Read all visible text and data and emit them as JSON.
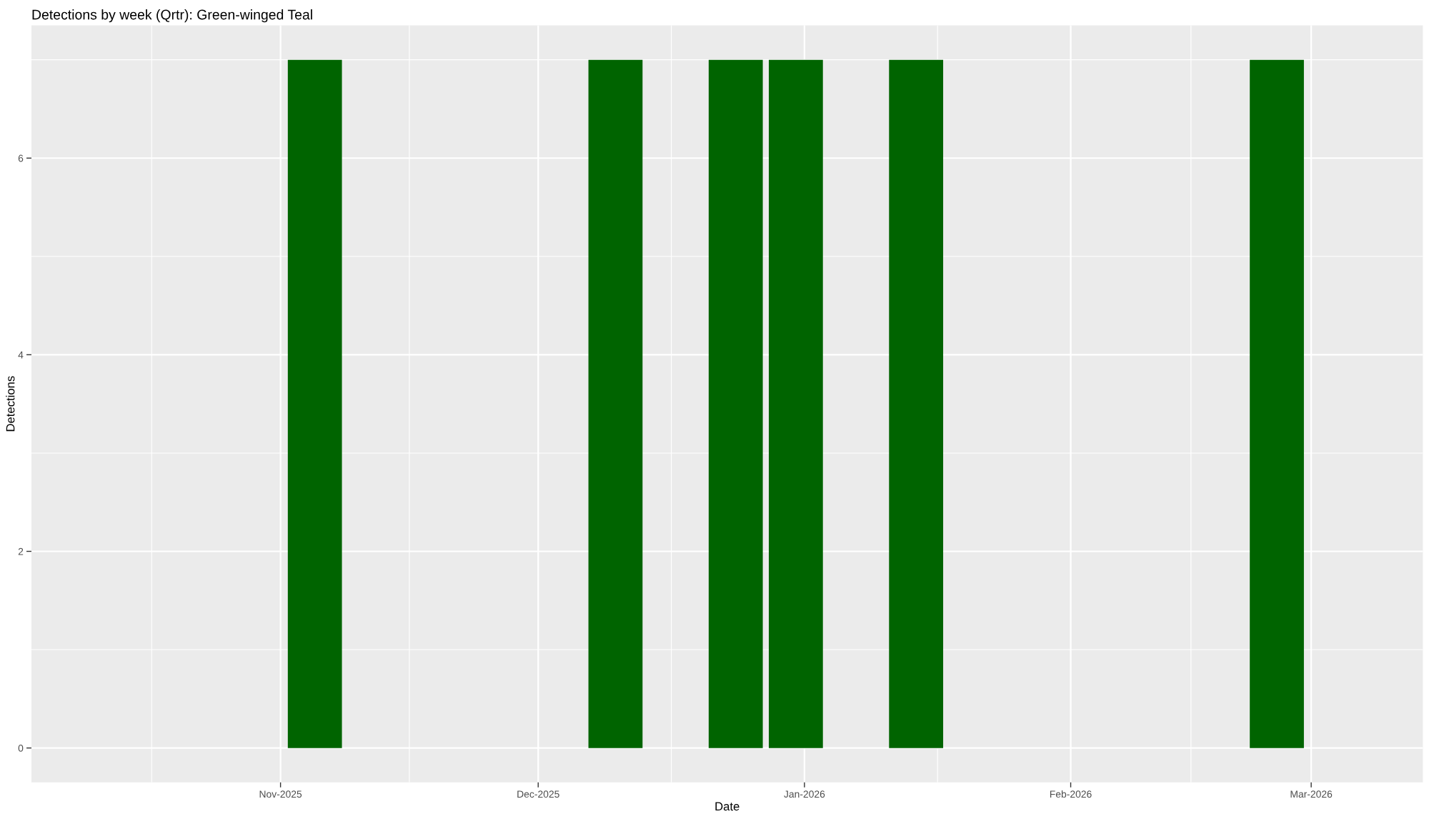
{
  "chart_data": {
    "type": "bar",
    "title": "Detections by week (Qrtr): Green-winged Teal",
    "xlabel": "Date",
    "ylabel": "Detections",
    "x": [
      "2025-11-05",
      "2025-12-10",
      "2025-12-24",
      "2025-12-31",
      "2026-01-14",
      "2026-02-25"
    ],
    "values": [
      7,
      7,
      7,
      7,
      7,
      7
    ],
    "color": "#006400",
    "xlim": [
      "2025-10-03",
      "2026-03-14"
    ],
    "xticks": [
      {
        "value": "2025-11-01",
        "label": "Nov-2025"
      },
      {
        "value": "2025-12-01",
        "label": "Dec-2025"
      },
      {
        "value": "2026-01-01",
        "label": "Jan-2026"
      },
      {
        "value": "2026-02-01",
        "label": "Feb-2026"
      },
      {
        "value": "2026-03-01",
        "label": "Mar-2026"
      }
    ],
    "ylim": [
      -0.35,
      7.35
    ],
    "yticks": [
      0,
      2,
      4,
      6
    ],
    "grid": true
  }
}
